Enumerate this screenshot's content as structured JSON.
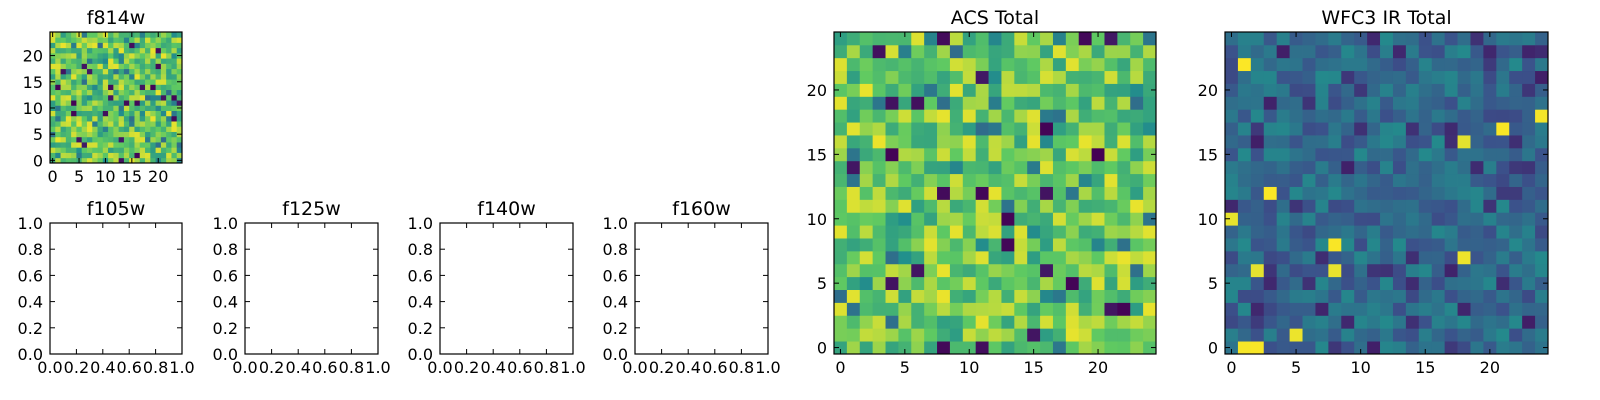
{
  "colormap": {
    "name": "viridis",
    "stops": [
      "#440154",
      "#3b528b",
      "#21918c",
      "#5ec962",
      "#fde725"
    ]
  },
  "chart_data": [
    {
      "id": "f814w",
      "type": "heatmap",
      "title": "f814w",
      "grid_size": [
        25,
        25
      ],
      "xlim": [
        -0.5,
        24.5
      ],
      "ylim": [
        -0.5,
        24.5
      ],
      "xticks": [
        0,
        5,
        10,
        15,
        20
      ],
      "yticks": [
        0,
        5,
        10,
        15,
        20
      ],
      "xtick_labels": [
        "0",
        "5",
        "10",
        "15",
        "20"
      ],
      "ytick_labels": [
        "0",
        "5",
        "10",
        "15",
        "20"
      ],
      "value_range": [
        0,
        1
      ],
      "value_distribution": "mostly high (green-yellow), occasional dark pixels",
      "random_seed": 814,
      "values": null
    },
    {
      "id": "f105w",
      "type": "heatmap",
      "title": "f105w",
      "empty": true,
      "xlim": [
        0,
        1
      ],
      "ylim": [
        0,
        1
      ],
      "xticks": [
        0,
        0.2,
        0.4,
        0.6,
        0.8,
        1.0
      ],
      "yticks": [
        0,
        0.2,
        0.4,
        0.6,
        0.8,
        1.0
      ],
      "xtick_labels": [
        "0.0",
        "0.2",
        "0.4",
        "0.6",
        "0.8",
        "1.0"
      ],
      "ytick_labels": [
        "0.0",
        "0.2",
        "0.4",
        "0.6",
        "0.8",
        "1.0"
      ]
    },
    {
      "id": "f125w",
      "type": "heatmap",
      "title": "f125w",
      "empty": true,
      "xlim": [
        0,
        1
      ],
      "ylim": [
        0,
        1
      ],
      "xticks": [
        0,
        0.2,
        0.4,
        0.6,
        0.8,
        1.0
      ],
      "yticks": [
        0,
        0.2,
        0.4,
        0.6,
        0.8,
        1.0
      ],
      "xtick_labels": [
        "0.0",
        "0.2",
        "0.4",
        "0.6",
        "0.8",
        "1.0"
      ],
      "ytick_labels": [
        "0.0",
        "0.2",
        "0.4",
        "0.6",
        "0.8",
        "1.0"
      ]
    },
    {
      "id": "f140w",
      "type": "heatmap",
      "title": "f140w",
      "empty": true,
      "xlim": [
        0,
        1
      ],
      "ylim": [
        0,
        1
      ],
      "xticks": [
        0,
        0.2,
        0.4,
        0.6,
        0.8,
        1.0
      ],
      "yticks": [
        0,
        0.2,
        0.4,
        0.6,
        0.8,
        1.0
      ],
      "xtick_labels": [
        "0.0",
        "0.2",
        "0.4",
        "0.6",
        "0.8",
        "1.0"
      ],
      "ytick_labels": [
        "0.0",
        "0.2",
        "0.4",
        "0.6",
        "0.8",
        "1.0"
      ]
    },
    {
      "id": "f160w",
      "type": "heatmap",
      "title": "f160w",
      "empty": true,
      "xlim": [
        0,
        1
      ],
      "ylim": [
        0,
        1
      ],
      "xticks": [
        0,
        0.2,
        0.4,
        0.6,
        0.8,
        1.0
      ],
      "yticks": [
        0,
        0.2,
        0.4,
        0.6,
        0.8,
        1.0
      ],
      "xtick_labels": [
        "0.0",
        "0.2",
        "0.4",
        "0.6",
        "0.8",
        "1.0"
      ],
      "ytick_labels": [
        "0.0",
        "0.2",
        "0.4",
        "0.6",
        "0.8",
        "1.0"
      ]
    },
    {
      "id": "acs-total",
      "type": "heatmap",
      "title": "ACS Total",
      "grid_size": [
        25,
        25
      ],
      "xlim": [
        -0.5,
        24.5
      ],
      "ylim": [
        -0.5,
        24.5
      ],
      "xticks": [
        0,
        5,
        10,
        15,
        20
      ],
      "yticks": [
        0,
        5,
        10,
        15,
        20
      ],
      "xtick_labels": [
        "0",
        "5",
        "10",
        "15",
        "20"
      ],
      "ytick_labels": [
        "0",
        "5",
        "10",
        "15",
        "20"
      ],
      "value_range": [
        0,
        1
      ],
      "value_distribution": "mostly high (green-yellow), sparse dark pixels",
      "random_seed": 1001,
      "values": null
    },
    {
      "id": "wfc3-ir-total",
      "type": "heatmap",
      "title": "WFC3 IR Total",
      "grid_size": [
        25,
        25
      ],
      "xlim": [
        -0.5,
        24.5
      ],
      "ylim": [
        -0.5,
        24.5
      ],
      "xticks": [
        0,
        5,
        10,
        15,
        20
      ],
      "yticks": [
        0,
        5,
        10,
        15,
        20
      ],
      "xtick_labels": [
        "0",
        "5",
        "10",
        "15",
        "20"
      ],
      "ytick_labels": [
        "0",
        "5",
        "10",
        "15",
        "20"
      ],
      "value_range": [
        0,
        1
      ],
      "value_distribution": "mostly low-mid (blue-teal), few bright yellow pixels",
      "random_seed": 3003,
      "values": null
    }
  ]
}
